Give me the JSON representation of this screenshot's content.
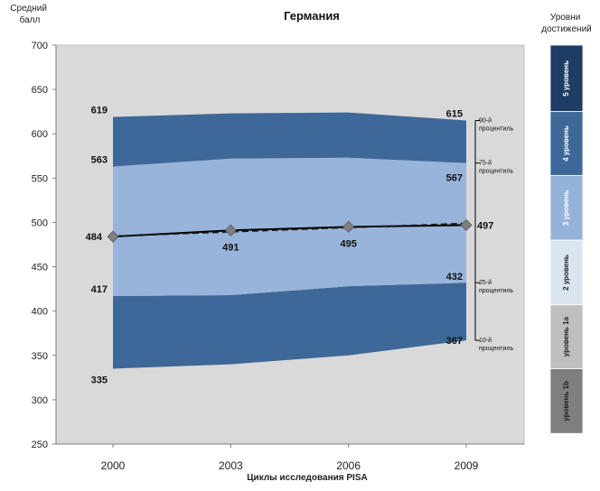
{
  "chart_data": {
    "type": "area",
    "title": "Германия",
    "ylabel_lines": [
      "Средний",
      "балл"
    ],
    "xlabel": "Циклы исследования PISA",
    "x": [
      "2000",
      "2003",
      "2006",
      "2009"
    ],
    "ylim": [
      250,
      700
    ],
    "yticks": [
      250,
      300,
      350,
      400,
      450,
      500,
      550,
      600,
      650,
      700
    ],
    "grid": false,
    "bands": [
      {
        "name": "p10",
        "values": [
          335,
          340,
          350,
          367
        ],
        "label_indices": [
          0,
          3
        ]
      },
      {
        "name": "p25",
        "values": [
          417,
          418,
          428,
          432
        ],
        "label_indices": [
          0,
          3
        ]
      },
      {
        "name": "p75",
        "values": [
          563,
          572,
          573,
          567
        ],
        "label_indices": [
          0,
          3
        ]
      },
      {
        "name": "p90",
        "values": [
          619,
          623,
          624,
          615
        ],
        "label_indices": [
          0,
          3
        ]
      }
    ],
    "mean": {
      "values": [
        484,
        491,
        495,
        497
      ],
      "label_indices": [
        0,
        1,
        2,
        3
      ]
    },
    "trend": {
      "values": [
        484.5,
        499
      ]
    },
    "percentile_labels": [
      {
        "text": [
          "90-й",
          "процентиль"
        ],
        "value": 615
      },
      {
        "text": [
          "75-й",
          "процентиль"
        ],
        "value": 567
      },
      {
        "text": [
          "25-й",
          "процентиль"
        ],
        "value": 432
      },
      {
        "text": [
          "10-й",
          "процентиль"
        ],
        "value": 367
      }
    ],
    "colors": {
      "plot_bg": "#d9d9d9",
      "outer_band": "#3e6898",
      "inner_band": "#98b4da",
      "mean_line": "#000000",
      "marker": "#7f7f7f"
    },
    "levels_title_lines": [
      "Уровни",
      "достижений"
    ],
    "levels": [
      {
        "label": "5 уровень",
        "from": 625,
        "to": 700,
        "color": "#1f3c64",
        "text_color": "#ffffff"
      },
      {
        "label": "4 уровень",
        "from": 553,
        "to": 625,
        "color": "#3e6898",
        "text_color": "#ffffff"
      },
      {
        "label": "3 уровень",
        "from": 480,
        "to": 553,
        "color": "#95b2d8",
        "text_color": "#ffffff"
      },
      {
        "label": "2 уровень",
        "from": 407,
        "to": 480,
        "color": "#dbe5f1",
        "text_color": "#1f1f1f"
      },
      {
        "label": "уровень 1a",
        "from": 335,
        "to": 407,
        "color": "#bfbfbf",
        "text_color": "#1f1f1f"
      },
      {
        "label": "уровень 1b",
        "from": 262,
        "to": 335,
        "color": "#7f7f7f",
        "text_color": "#1f1f1f"
      }
    ]
  }
}
